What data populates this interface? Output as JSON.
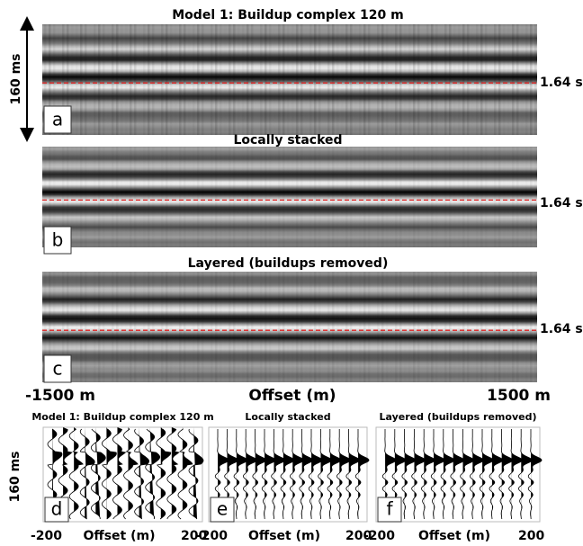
{
  "sections": [
    {
      "title": "Model 1: Buildup complex 120 m",
      "label": "a",
      "time_label": "1.64 s"
    },
    {
      "title": "Locally stacked",
      "label": "b",
      "time_label": "1.64 s"
    },
    {
      "title": "Layered (buildups removed)",
      "label": "c",
      "time_label": "1.64 s"
    }
  ],
  "top_scale": "160 ms",
  "offset_axis": {
    "left": "-1500 m",
    "label": "Offset (m)",
    "right": "1500 m"
  },
  "wiggle_scale": "160 ms",
  "wiggle_panels": [
    {
      "title": "Model 1: Buildup complex 120 m",
      "label": "d",
      "x_left": "-200",
      "x_label": "Offset (m)",
      "x_right": "200"
    },
    {
      "title": "Locally stacked",
      "label": "e",
      "x_left": "-200",
      "x_label": "Offset (m)",
      "x_right": "200"
    },
    {
      "title": "Layered (buildups removed)",
      "label": "f",
      "x_left": "-200",
      "x_label": "Offset (m)",
      "x_right": "200"
    }
  ]
}
